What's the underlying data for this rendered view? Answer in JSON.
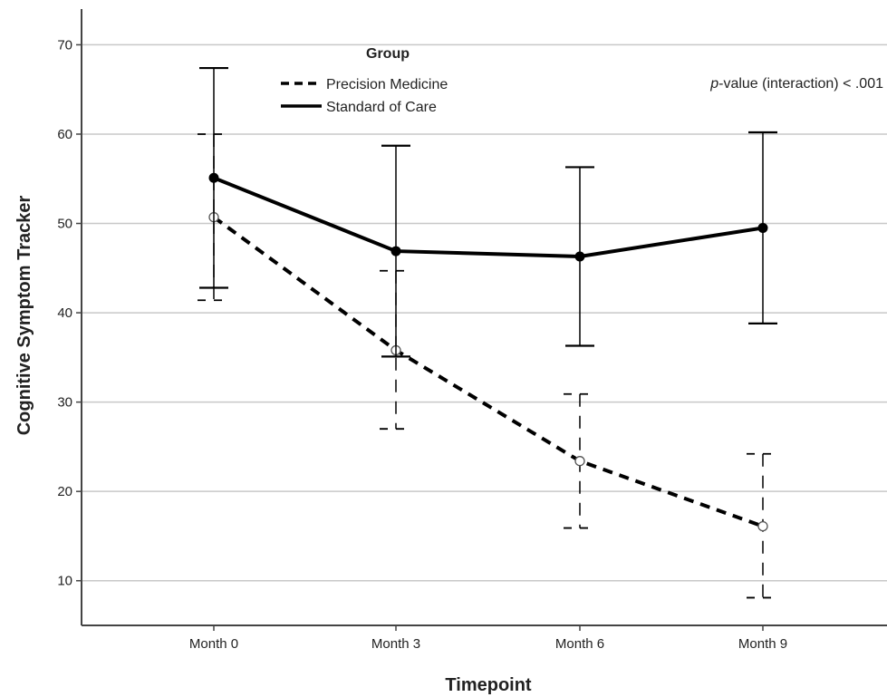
{
  "chart_data": {
    "type": "line",
    "title": "",
    "xlabel": "Timepoint",
    "ylabel": "Cognitive Symptom Tracker",
    "categories": [
      "Month 0",
      "Month 3",
      "Month 6",
      "Month 9"
    ],
    "ylim": [
      5,
      74
    ],
    "yticks": [
      10,
      20,
      30,
      40,
      50,
      60,
      70
    ],
    "grid": true,
    "legend": {
      "title": "Group",
      "position": "top-center"
    },
    "annotation": {
      "italic": "p",
      "text": "-value (interaction) < .001"
    },
    "series": [
      {
        "name": "Precision Medicine",
        "style": "dashed",
        "marker": "open-circle",
        "color": "#000000",
        "values": [
          50.7,
          35.8,
          23.4,
          16.1
        ],
        "error_low": [
          41.4,
          27.0,
          15.9,
          8.1
        ],
        "error_high": [
          60.0,
          44.7,
          30.9,
          24.2
        ]
      },
      {
        "name": "Standard of Care",
        "style": "solid",
        "marker": "filled-circle",
        "color": "#000000",
        "values": [
          55.1,
          46.9,
          46.3,
          49.5
        ],
        "error_low": [
          42.8,
          35.1,
          36.3,
          38.8
        ],
        "error_high": [
          67.4,
          58.7,
          56.3,
          60.2
        ]
      }
    ]
  }
}
